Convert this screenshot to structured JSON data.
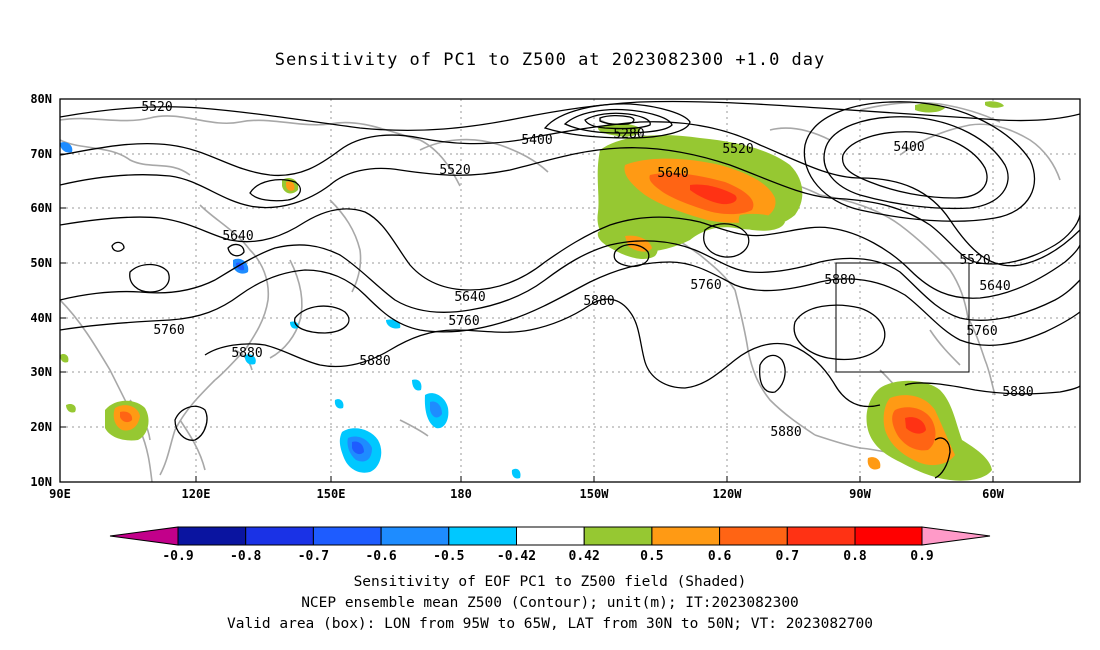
{
  "title": "Sensitivity of PC1 to Z500 at 2023082300 +1.0 day",
  "map": {
    "lat_ticks": [
      "80N",
      "70N",
      "60N",
      "50N",
      "40N",
      "30N",
      "20N",
      "10N"
    ],
    "lon_ticks": [
      "90E",
      "120E",
      "150E",
      "180",
      "150W",
      "120W",
      "90W",
      "60W"
    ],
    "contour_labels": [
      "5520",
      "5400",
      "5280",
      "5520",
      "5400",
      "5520",
      "5640",
      "5640",
      "5640",
      "5760",
      "5640",
      "5760",
      "5880",
      "5760",
      "5880",
      "5520",
      "5640",
      "5760",
      "5880",
      "5880",
      "5880"
    ],
    "valid_box": {
      "lon": [
        "95W",
        "65W"
      ],
      "lat": [
        "30N",
        "50N"
      ]
    }
  },
  "colorbar": {
    "labels": [
      "-0.9",
      "-0.8",
      "-0.7",
      "-0.6",
      "-0.5",
      "-0.42",
      "0.42",
      "0.5",
      "0.6",
      "0.7",
      "0.8",
      "0.9"
    ],
    "colors": [
      "#c2008a",
      "#0a14a0",
      "#1a32e6",
      "#1e5cff",
      "#1e8cff",
      "#00c8ff",
      "#ffffff",
      "#96c832",
      "#ff9a14",
      "#ff6414",
      "#ff3214",
      "#ff0000",
      "#ff9ac8"
    ]
  },
  "captions": [
    "Sensitivity of EOF PC1 to Z500 field (Shaded)",
    "NCEP ensemble mean Z500 (Contour); unit(m); IT:2023082300",
    "Valid area (box): LON from 95W to 65W, LAT from 30N to 50N; VT: 2023082700"
  ]
}
